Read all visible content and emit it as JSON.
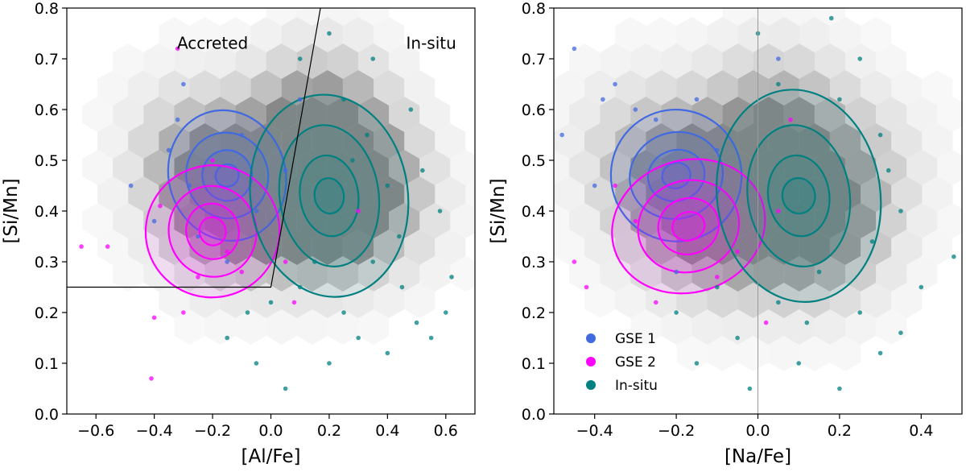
{
  "chart_data": [
    {
      "type": "scatter",
      "panel": "left",
      "xlabel": "[Al/Fe]",
      "ylabel": "[Si/Mn]",
      "xlim": [
        -0.7,
        0.7
      ],
      "ylim": [
        0.0,
        0.8
      ],
      "xticks": [
        -0.6,
        -0.4,
        -0.2,
        0.0,
        0.2,
        0.4,
        0.6
      ],
      "xtick_labels": [
        "−0.6",
        "−0.4",
        "−0.2",
        "0.0",
        "0.2",
        "0.4",
        "0.6"
      ],
      "yticks": [
        0.0,
        0.1,
        0.2,
        0.3,
        0.4,
        0.5,
        0.6,
        0.7,
        0.8
      ],
      "ytick_labels": [
        "0.0",
        "0.1",
        "0.2",
        "0.3",
        "0.4",
        "0.5",
        "0.6",
        "0.7",
        "0.8"
      ],
      "annotations": [
        {
          "text": "Accreted",
          "x": -0.2,
          "y": 0.72
        },
        {
          "text": "In-situ",
          "x": 0.55,
          "y": 0.72
        }
      ],
      "division_line": [
        [
          -0.7,
          0.25
        ],
        [
          0.0,
          0.25
        ],
        [
          0.17,
          0.8
        ]
      ],
      "density": [
        {
          "x": -0.22,
          "y": 0.47,
          "level": 0.5
        },
        {
          "x": -0.15,
          "y": 0.41,
          "level": 0.55
        },
        {
          "x": 0.0,
          "y": 0.42,
          "level": 0.45
        },
        {
          "x": 0.15,
          "y": 0.45,
          "level": 0.6
        },
        {
          "x": 0.2,
          "y": 0.42,
          "level": 0.75
        },
        {
          "x": 0.1,
          "y": 0.55,
          "level": 0.45
        },
        {
          "x": 0.2,
          "y": 0.6,
          "level": 0.3
        },
        {
          "x": 0.3,
          "y": 0.48,
          "level": 0.4
        },
        {
          "x": -0.3,
          "y": 0.55,
          "level": 0.15
        },
        {
          "x": 0.4,
          "y": 0.4,
          "level": 0.2
        }
      ],
      "series": [
        {
          "name": "GSE 1",
          "color": "#4169e1",
          "center": [
            -0.15,
            0.47
          ],
          "spread": [
            0.11,
            0.065
          ],
          "contour_levels": [
            [
              0.04,
              0.022
            ],
            [
              0.085,
              0.05
            ],
            [
              0.14,
              0.085
            ],
            [
              0.2,
              0.13
            ]
          ],
          "points": [
            {
              "x": -0.3,
              "y": 0.65
            },
            {
              "x": -0.4,
              "y": 0.38
            },
            {
              "x": -0.25,
              "y": 0.35
            },
            {
              "x": -0.1,
              "y": 0.55
            },
            {
              "x": -0.35,
              "y": 0.52
            },
            {
              "x": -0.15,
              "y": 0.3
            },
            {
              "x": 0.05,
              "y": 0.48
            },
            {
              "x": -0.28,
              "y": 0.45
            },
            {
              "x": -0.05,
              "y": 0.4
            },
            {
              "x": -0.32,
              "y": 0.58
            },
            {
              "x": 0.1,
              "y": 0.62
            },
            {
              "x": -0.48,
              "y": 0.45
            }
          ]
        },
        {
          "name": "GSE 2",
          "color": "#ff00ff",
          "center": [
            -0.2,
            0.36
          ],
          "spread": [
            0.12,
            0.07
          ],
          "contour_levels": [
            [
              0.045,
              0.028
            ],
            [
              0.09,
              0.055
            ],
            [
              0.15,
              0.09
            ],
            [
              0.23,
              0.13
            ]
          ],
          "points": [
            {
              "x": -0.65,
              "y": 0.33
            },
            {
              "x": -0.56,
              "y": 0.33
            },
            {
              "x": -0.41,
              "y": 0.07
            },
            {
              "x": -0.3,
              "y": 0.2
            },
            {
              "x": -0.4,
              "y": 0.19
            },
            {
              "x": -0.38,
              "y": 0.41
            },
            {
              "x": -0.15,
              "y": 0.32
            },
            {
              "x": -0.2,
              "y": 0.5
            },
            {
              "x": -0.1,
              "y": 0.28
            },
            {
              "x": 0.05,
              "y": 0.3
            },
            {
              "x": -0.32,
              "y": 0.72
            },
            {
              "x": 0.08,
              "y": 0.22
            },
            {
              "x": -0.25,
              "y": 0.27
            },
            {
              "x": 0.3,
              "y": 0.4
            }
          ]
        },
        {
          "name": "In-situ",
          "color": "#008080",
          "center": [
            0.2,
            0.43
          ],
          "spread": [
            0.17,
            0.13
          ],
          "contour_levels": [
            [
              0.05,
              0.035
            ],
            [
              0.1,
              0.08
            ],
            [
              0.17,
              0.14
            ],
            [
              0.27,
              0.2
            ]
          ],
          "points": [
            {
              "x": 0.1,
              "y": 0.7
            },
            {
              "x": 0.2,
              "y": 0.75
            },
            {
              "x": 0.35,
              "y": 0.3
            },
            {
              "x": 0.45,
              "y": 0.25
            },
            {
              "x": 0.5,
              "y": 0.18
            },
            {
              "x": 0.55,
              "y": 0.15
            },
            {
              "x": 0.62,
              "y": 0.27
            },
            {
              "x": 0.58,
              "y": 0.4
            },
            {
              "x": 0.3,
              "y": 0.15
            },
            {
              "x": 0.4,
              "y": 0.12
            },
            {
              "x": 0.05,
              "y": 0.05
            },
            {
              "x": -0.05,
              "y": 0.1
            },
            {
              "x": 0.25,
              "y": 0.2
            },
            {
              "x": 0.15,
              "y": 0.3
            },
            {
              "x": 0.48,
              "y": 0.6
            },
            {
              "x": 0.35,
              "y": 0.7
            },
            {
              "x": 0.28,
              "y": 0.5
            },
            {
              "x": 0.4,
              "y": 0.45
            },
            {
              "x": 0.0,
              "y": 0.22
            },
            {
              "x": -0.15,
              "y": 0.15
            },
            {
              "x": 0.52,
              "y": 0.48
            },
            {
              "x": 0.2,
              "y": 0.1
            },
            {
              "x": 0.44,
              "y": 0.35
            },
            {
              "x": 0.33,
              "y": 0.55
            },
            {
              "x": 0.1,
              "y": 0.25
            },
            {
              "x": 0.6,
              "y": 0.2
            },
            {
              "x": 0.25,
              "y": 0.62
            },
            {
              "x": -0.08,
              "y": 0.2
            }
          ]
        }
      ]
    },
    {
      "type": "scatter",
      "panel": "right",
      "xlabel": "[Na/Fe]",
      "ylabel": "[Si/Mn]",
      "xlim": [
        -0.5,
        0.5
      ],
      "ylim": [
        0.0,
        0.8
      ],
      "xticks": [
        -0.4,
        -0.2,
        0.0,
        0.2,
        0.4
      ],
      "xtick_labels": [
        "−0.4",
        "−0.2",
        "0.0",
        "0.2",
        "0.4"
      ],
      "yticks": [
        0.0,
        0.1,
        0.2,
        0.3,
        0.4,
        0.5,
        0.6,
        0.7,
        0.8
      ],
      "ytick_labels": [
        "0.0",
        "0.1",
        "0.2",
        "0.3",
        "0.4",
        "0.5",
        "0.6",
        "0.7",
        "0.8"
      ],
      "vline_x": 0.0,
      "legend_position": "lower-left",
      "legend": [
        "GSE 1",
        "GSE 2",
        "In-situ"
      ],
      "density": [
        {
          "x": -0.2,
          "y": 0.47,
          "level": 0.5
        },
        {
          "x": -0.15,
          "y": 0.4,
          "level": 0.55
        },
        {
          "x": 0.1,
          "y": 0.43,
          "level": 0.75
        },
        {
          "x": 0.0,
          "y": 0.5,
          "level": 0.45
        },
        {
          "x": 0.05,
          "y": 0.6,
          "level": 0.35
        },
        {
          "x": 0.15,
          "y": 0.35,
          "level": 0.45
        },
        {
          "x": -0.05,
          "y": 0.35,
          "level": 0.35
        },
        {
          "x": -0.3,
          "y": 0.55,
          "level": 0.15
        },
        {
          "x": 0.25,
          "y": 0.5,
          "level": 0.2
        }
      ],
      "series": [
        {
          "name": "GSE 1",
          "color": "#4169e1",
          "center": [
            -0.2,
            0.47
          ],
          "spread": [
            0.09,
            0.07
          ],
          "contour_levels": [
            [
              0.035,
              0.025
            ],
            [
              0.07,
              0.05
            ],
            [
              0.115,
              0.085
            ],
            [
              0.16,
              0.13
            ]
          ],
          "points": [
            {
              "x": -0.45,
              "y": 0.72
            },
            {
              "x": -0.48,
              "y": 0.55
            },
            {
              "x": -0.35,
              "y": 0.65
            },
            {
              "x": -0.3,
              "y": 0.6
            },
            {
              "x": -0.4,
              "y": 0.45
            },
            {
              "x": -0.25,
              "y": 0.58
            },
            {
              "x": -0.1,
              "y": 0.52
            },
            {
              "x": -0.38,
              "y": 0.62
            },
            {
              "x": 0.05,
              "y": 0.7
            },
            {
              "x": -0.2,
              "y": 0.28
            },
            {
              "x": -0.15,
              "y": 0.62
            }
          ]
        },
        {
          "name": "GSE 2",
          "color": "#ff00ff",
          "center": [
            -0.17,
            0.37
          ],
          "spread": [
            0.1,
            0.07
          ],
          "contour_levels": [
            [
              0.04,
              0.028
            ],
            [
              0.075,
              0.055
            ],
            [
              0.125,
              0.09
            ],
            [
              0.19,
              0.13
            ]
          ],
          "points": [
            {
              "x": -0.45,
              "y": 0.3
            },
            {
              "x": -0.42,
              "y": 0.25
            },
            {
              "x": -0.3,
              "y": 0.38
            },
            {
              "x": -0.25,
              "y": 0.22
            },
            {
              "x": -0.1,
              "y": 0.27
            },
            {
              "x": 0.02,
              "y": 0.18
            },
            {
              "x": 0.05,
              "y": 0.4
            },
            {
              "x": -0.35,
              "y": 0.45
            },
            {
              "x": 0.08,
              "y": 0.58
            },
            {
              "x": -0.05,
              "y": 0.32
            }
          ]
        },
        {
          "name": "In-situ",
          "color": "#008080",
          "center": [
            0.1,
            0.43
          ],
          "spread": [
            0.12,
            0.13
          ],
          "contour_levels": [
            [
              0.04,
              0.035
            ],
            [
              0.075,
              0.08
            ],
            [
              0.125,
              0.14
            ],
            [
              0.2,
              0.21
            ]
          ],
          "points": [
            {
              "x": 0.0,
              "y": 0.75
            },
            {
              "x": 0.05,
              "y": 0.65
            },
            {
              "x": 0.2,
              "y": 0.62
            },
            {
              "x": 0.3,
              "y": 0.55
            },
            {
              "x": 0.35,
              "y": 0.4
            },
            {
              "x": 0.25,
              "y": 0.2
            },
            {
              "x": 0.3,
              "y": 0.12
            },
            {
              "x": 0.2,
              "y": 0.05
            },
            {
              "x": 0.1,
              "y": 0.1
            },
            {
              "x": -0.05,
              "y": 0.15
            },
            {
              "x": -0.1,
              "y": 0.25
            },
            {
              "x": 0.4,
              "y": 0.25
            },
            {
              "x": 0.48,
              "y": 0.31
            },
            {
              "x": 0.15,
              "y": 0.28
            },
            {
              "x": -0.2,
              "y": 0.2
            },
            {
              "x": 0.05,
              "y": 0.22
            },
            {
              "x": 0.25,
              "y": 0.7
            },
            {
              "x": 0.35,
              "y": 0.16
            },
            {
              "x": -0.02,
              "y": 0.05
            },
            {
              "x": 0.18,
              "y": 0.78
            },
            {
              "x": 0.32,
              "y": 0.48
            },
            {
              "x": -0.15,
              "y": 0.1
            },
            {
              "x": 0.12,
              "y": 0.18
            },
            {
              "x": 0.28,
              "y": 0.34
            }
          ]
        }
      ]
    }
  ]
}
